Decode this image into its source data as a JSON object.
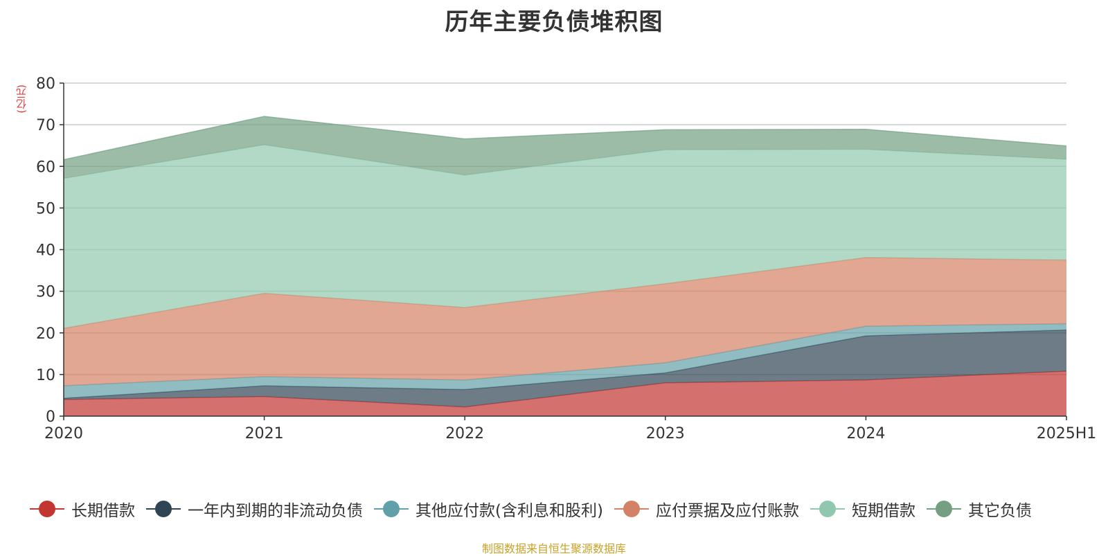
{
  "title": "历年主要负债堆积图",
  "unit_label": "(亿元)",
  "source_note": "制图数据来自恒生聚源数据库",
  "chart_data": {
    "type": "area",
    "stacked": true,
    "categories": [
      "2020",
      "2021",
      "2022",
      "2023",
      "2024",
      "2025H1"
    ],
    "ylim": [
      0,
      80
    ],
    "yticks": [
      0,
      10,
      20,
      30,
      40,
      50,
      60,
      70,
      80
    ],
    "ylabel": "(亿元)",
    "grid": true,
    "legend_position": "bottom",
    "series": [
      {
        "name": "长期借款",
        "color": "#c23531",
        "values": [
          4.0,
          4.7,
          2.2,
          8.0,
          8.7,
          10.8
        ]
      },
      {
        "name": "一年内到期的非流动负债",
        "color": "#2f4554",
        "values": [
          0.3,
          2.6,
          4.2,
          2.4,
          10.6,
          9.9
        ]
      },
      {
        "name": "其他应付款(含利息和股利)",
        "color": "#61a0a8",
        "values": [
          3.0,
          2.2,
          2.3,
          2.4,
          2.3,
          1.5
        ]
      },
      {
        "name": "应付票据及应付账款",
        "color": "#d48265",
        "values": [
          13.8,
          20.0,
          17.4,
          19.0,
          16.5,
          15.3
        ]
      },
      {
        "name": "短期借款",
        "color": "#91c7ae",
        "values": [
          36.0,
          35.7,
          31.8,
          32.2,
          26.0,
          24.2
        ]
      },
      {
        "name": "其它负债",
        "color": "#749f83",
        "values": [
          4.5,
          6.8,
          8.7,
          4.8,
          4.8,
          3.2
        ]
      }
    ]
  }
}
